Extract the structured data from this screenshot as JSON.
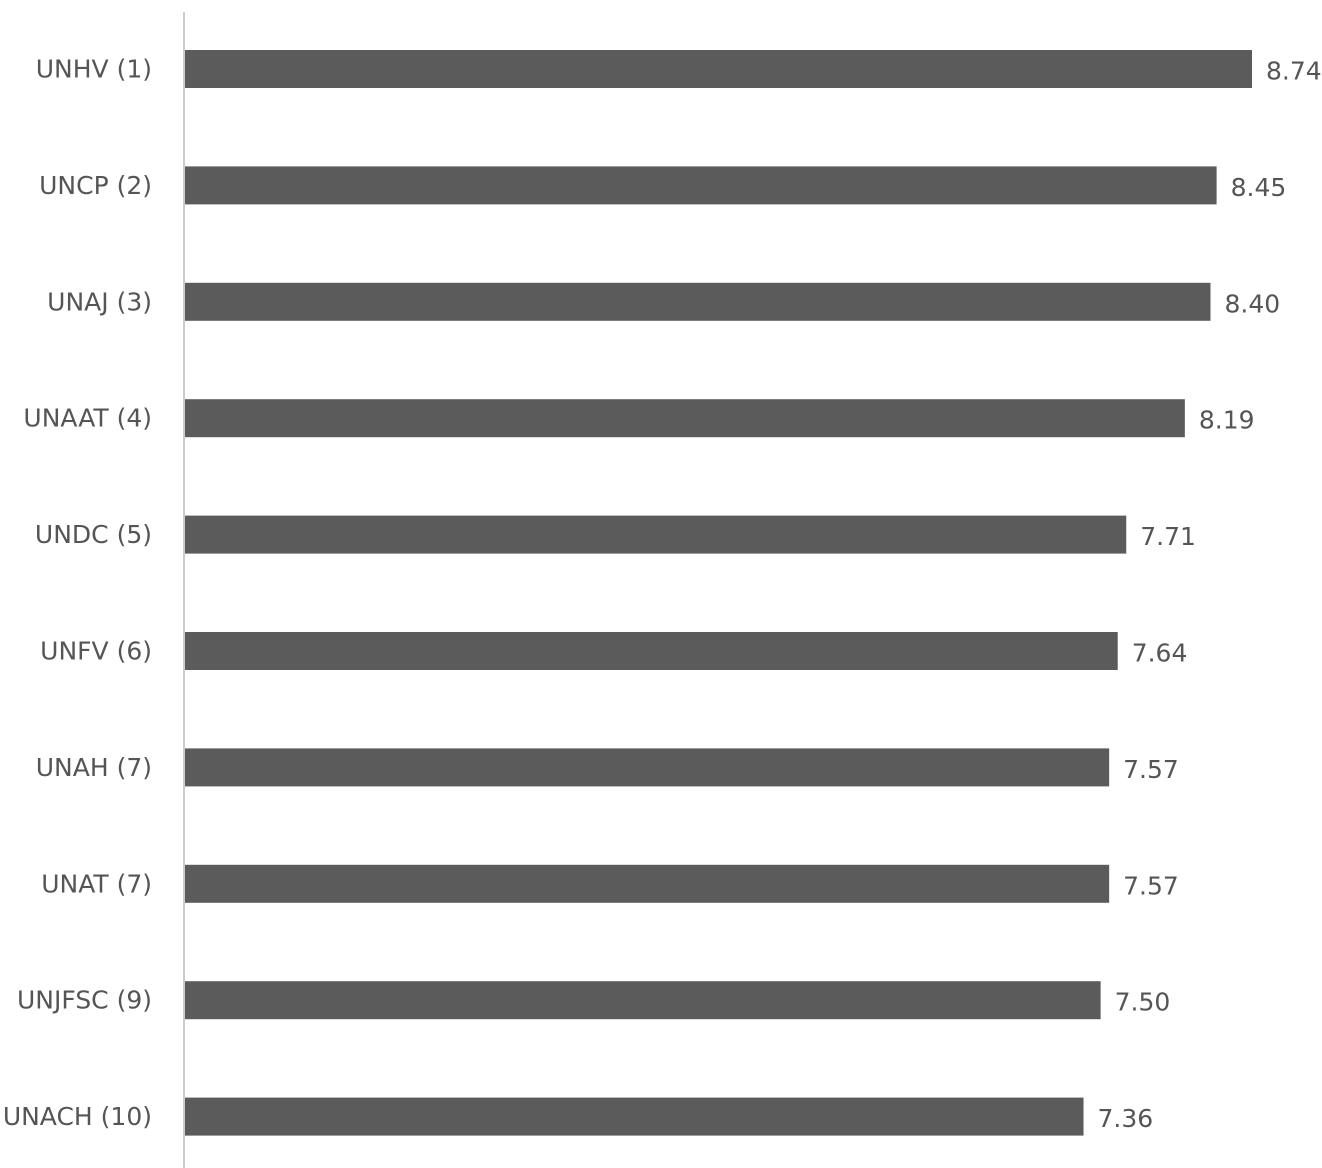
{
  "chart_data": {
    "type": "bar",
    "orientation": "horizontal",
    "categories": [
      "UNHV (1)",
      "UNCP (2)",
      "UNAJ (3)",
      "UNAAT (4)",
      "UNDC (5)",
      "UNFV (6)",
      "UNAH (7)",
      "UNAT (7)",
      "UNJFSC (9)",
      "UNACH (10)"
    ],
    "values": [
      8.74,
      8.45,
      8.4,
      8.19,
      7.71,
      7.64,
      7.57,
      7.57,
      7.5,
      7.36
    ],
    "value_labels": [
      "8.74",
      "8.45",
      "8.40",
      "8.19",
      "7.71",
      "7.64",
      "7.57",
      "7.57",
      "7.50",
      "7.36"
    ],
    "title": "",
    "xlabel": "",
    "ylabel": "",
    "grid": false,
    "legend": "none",
    "bar_color": "#5b5b5b",
    "axis_color": "#cccccc",
    "text_color": "#555555"
  }
}
